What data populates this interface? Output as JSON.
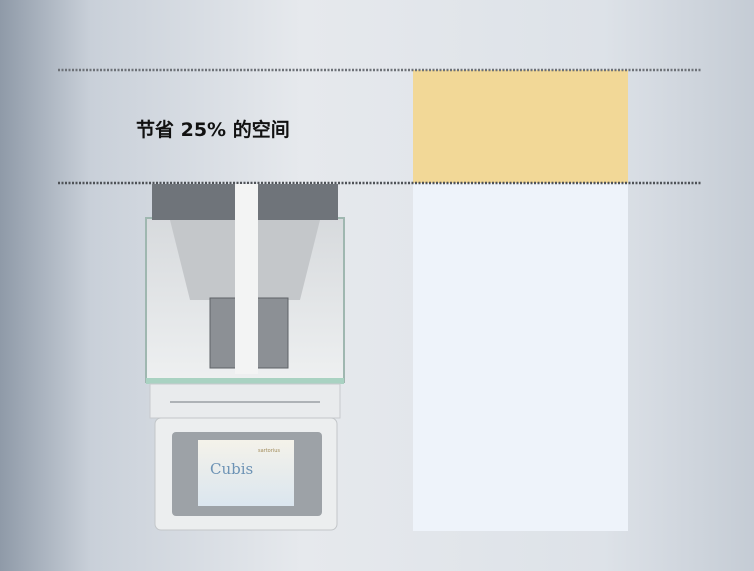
{
  "headline": "节省 25% 的空间",
  "device": {
    "screen_title": "Cubis",
    "brand": "sartorius"
  }
}
